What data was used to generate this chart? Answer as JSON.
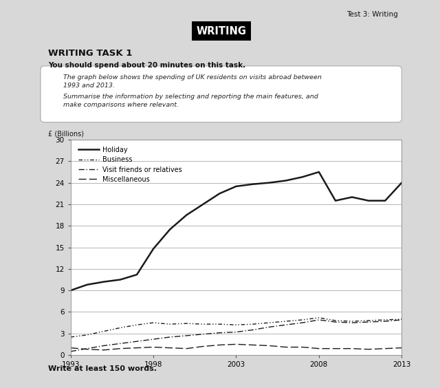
{
  "title_top_right": "Test 3: Writing",
  "banner_text": "WRITING",
  "heading": "WRITING TASK 1",
  "subheading": "You should spend about 20 minutes on this task.",
  "box_line1": "The graph below shows the spending of UK residents on visits abroad between",
  "box_line2": "1993 and 2013.",
  "box_line3": "Summarise the information by selecting and reporting the main features, and",
  "box_line4": "make comparisons where relevant.",
  "footer_text": "Write at least 150 words.",
  "ylabel": "£ (Billions)",
  "ylim": [
    0,
    30
  ],
  "yticks": [
    0,
    3,
    6,
    9,
    12,
    15,
    18,
    21,
    24,
    27,
    30
  ],
  "xticks": [
    1993,
    1998,
    2003,
    2008,
    2013
  ],
  "years": [
    1993,
    1994,
    1995,
    1996,
    1997,
    1998,
    1999,
    2000,
    2001,
    2002,
    2003,
    2004,
    2005,
    2006,
    2007,
    2008,
    2009,
    2010,
    2011,
    2012,
    2013
  ],
  "holiday": [
    9.0,
    9.8,
    10.2,
    10.5,
    11.2,
    14.8,
    17.5,
    19.5,
    21.0,
    22.5,
    23.5,
    23.8,
    24.0,
    24.3,
    24.8,
    25.5,
    21.5,
    22.0,
    21.5,
    21.5,
    24.0
  ],
  "business": [
    2.5,
    2.8,
    3.3,
    3.8,
    4.2,
    4.5,
    4.3,
    4.4,
    4.3,
    4.3,
    4.2,
    4.3,
    4.5,
    4.7,
    4.9,
    5.2,
    4.8,
    4.7,
    4.8,
    4.9,
    5.0
  ],
  "visit_friends": [
    0.5,
    0.9,
    1.3,
    1.6,
    1.9,
    2.2,
    2.5,
    2.7,
    2.9,
    3.1,
    3.2,
    3.5,
    3.9,
    4.2,
    4.5,
    4.9,
    4.6,
    4.5,
    4.6,
    4.7,
    4.9
  ],
  "miscellaneous": [
    1.0,
    0.8,
    0.7,
    0.9,
    1.0,
    1.1,
    1.0,
    0.9,
    1.2,
    1.4,
    1.5,
    1.4,
    1.3,
    1.1,
    1.1,
    0.9,
    0.9,
    0.9,
    0.8,
    0.9,
    1.0
  ],
  "bg_color": "#d8d8d8",
  "page_color": "#ffffff",
  "line_color": "#1a1a1a",
  "grid_color": "#999999",
  "legend_labels": [
    "Holiday",
    "Business",
    "Visit friends or relatives",
    "Miscellaneous"
  ]
}
